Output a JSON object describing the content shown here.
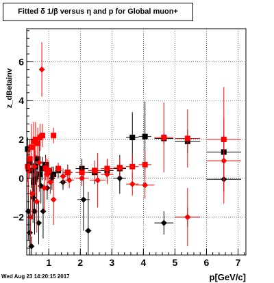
{
  "title": "Fitted δ 1/β versus η and p for Global muon+",
  "timestamp": "Wed Aug 23 14:20:15 2017",
  "chart_data": {
    "type": "scatter",
    "title": "Fitted δ 1/β versus η and p for Global muon+",
    "xlabel": "p[GeV/c]",
    "ylabel": "z_dBetainv",
    "xlim": [
      0.3,
      7.25
    ],
    "ylim": [
      -3.95,
      7.7
    ],
    "grid": true,
    "x_ticks": [
      1,
      2,
      3,
      4,
      5,
      6,
      7
    ],
    "y_ticks": [
      -2,
      0,
      2,
      4,
      6
    ],
    "series": [
      {
        "color": "#000000",
        "marker": "square",
        "points": [
          {
            "x": 0.33,
            "y": 1.5,
            "ex": 0.05,
            "ey": 0.6
          },
          {
            "x": 0.4,
            "y": 0.8,
            "ex": 0.05,
            "ey": 0.7
          },
          {
            "x": 0.45,
            "y": 0.4,
            "ex": 0.05,
            "ey": 0.9
          },
          {
            "x": 0.52,
            "y": -0.2,
            "ex": 0.05,
            "ey": 1.0
          },
          {
            "x": 0.58,
            "y": 0.6,
            "ex": 0.05,
            "ey": 0.8
          },
          {
            "x": 0.65,
            "y": 1.0,
            "ex": 0.05,
            "ey": 1.2
          },
          {
            "x": 0.72,
            "y": 0.2,
            "ex": 0.05,
            "ey": 0.7
          },
          {
            "x": 0.8,
            "y": 0.5,
            "ex": 0.05,
            "ey": 0.6
          },
          {
            "x": 0.9,
            "y": 0.7,
            "ex": 0.06,
            "ey": 0.5
          },
          {
            "x": 1.0,
            "y": 0.3,
            "ex": 0.07,
            "ey": 0.5
          },
          {
            "x": 1.15,
            "y": 0.2,
            "ex": 0.08,
            "ey": 0.4
          },
          {
            "x": 1.3,
            "y": 0.4,
            "ex": 0.1,
            "ey": 0.4
          },
          {
            "x": 1.6,
            "y": 0.3,
            "ex": 0.15,
            "ey": 0.4
          },
          {
            "x": 2.05,
            "y": 0.5,
            "ex": 0.2,
            "ey": 0.5
          },
          {
            "x": 2.45,
            "y": 0.3,
            "ex": 0.2,
            "ey": 0.6
          },
          {
            "x": 2.85,
            "y": 0.4,
            "ex": 0.2,
            "ey": 0.6
          },
          {
            "x": 3.25,
            "y": 0.5,
            "ex": 0.2,
            "ey": 0.7
          },
          {
            "x": 3.65,
            "y": 2.1,
            "ex": 0.2,
            "ey": 1.3
          },
          {
            "x": 4.05,
            "y": 2.15,
            "ex": 0.2,
            "ey": 1.8
          },
          {
            "x": 4.65,
            "y": 2.05,
            "ex": 0.3,
            "ey": 0.3
          },
          {
            "x": 5.4,
            "y": 1.9,
            "ex": 0.4,
            "ey": 0.6
          },
          {
            "x": 6.55,
            "y": 1.35,
            "ex": 0.55,
            "ey": 0.9
          }
        ]
      },
      {
        "color": "#000000",
        "marker": "diamond",
        "points": [
          {
            "x": 0.35,
            "y": -1.7,
            "ex": 0.04,
            "ey": 1.5
          },
          {
            "x": 0.4,
            "y": -2.8,
            "ex": 0.04,
            "ey": 1.2
          },
          {
            "x": 0.45,
            "y": -3.5,
            "ex": 0.04,
            "ey": 0.5
          },
          {
            "x": 0.5,
            "y": -1.0,
            "ex": 0.04,
            "ey": 1.3
          },
          {
            "x": 0.55,
            "y": -1.7,
            "ex": 0.04,
            "ey": 1.2
          },
          {
            "x": 0.6,
            "y": 0.0,
            "ex": 0.04,
            "ey": 1.2
          },
          {
            "x": 0.68,
            "y": -2.3,
            "ex": 0.05,
            "ey": 1.1
          },
          {
            "x": 0.75,
            "y": -0.4,
            "ex": 0.05,
            "ey": 0.9
          },
          {
            "x": 0.82,
            "y": -1.7,
            "ex": 0.05,
            "ey": 1.4
          },
          {
            "x": 0.95,
            "y": -0.5,
            "ex": 0.06,
            "ey": 0.6
          },
          {
            "x": 1.1,
            "y": 0.0,
            "ex": 0.08,
            "ey": 0.6
          },
          {
            "x": 1.45,
            "y": -0.2,
            "ex": 0.12,
            "ey": 0.4
          },
          {
            "x": 2.1,
            "y": -1.1,
            "ex": 0.2,
            "ey": 1.6
          },
          {
            "x": 2.25,
            "y": -2.7,
            "ex": 0.1,
            "ey": 2.0
          },
          {
            "x": 3.25,
            "y": 0.0,
            "ex": 0.2,
            "ey": 0.8
          },
          {
            "x": 4.65,
            "y": -2.3,
            "ex": 0.3,
            "ey": 0.6
          },
          {
            "x": 5.4,
            "y": -2.0,
            "ex": 0.4,
            "ey": 0.5
          },
          {
            "x": 6.55,
            "y": -0.05,
            "ex": 0.55,
            "ey": 0.6
          }
        ]
      },
      {
        "color": "#ff0000",
        "marker": "square",
        "points": [
          {
            "x": 0.33,
            "y": 0.6,
            "ex": 0.05,
            "ey": 0.8
          },
          {
            "x": 0.4,
            "y": 1.0,
            "ex": 0.05,
            "ey": 1.0
          },
          {
            "x": 0.45,
            "y": 1.6,
            "ex": 0.05,
            "ey": 1.2
          },
          {
            "x": 0.52,
            "y": 1.9,
            "ex": 0.05,
            "ey": 1.0
          },
          {
            "x": 0.58,
            "y": 2.0,
            "ex": 0.05,
            "ey": 0.9
          },
          {
            "x": 0.65,
            "y": 1.8,
            "ex": 0.05,
            "ey": 0.8
          },
          {
            "x": 0.72,
            "y": 2.1,
            "ex": 0.05,
            "ey": 0.7
          },
          {
            "x": 0.8,
            "y": 2.2,
            "ex": 0.05,
            "ey": 0.6
          },
          {
            "x": 0.9,
            "y": 0.5,
            "ex": 0.06,
            "ey": 0.6
          },
          {
            "x": 1.0,
            "y": 0.4,
            "ex": 0.07,
            "ey": 0.5
          },
          {
            "x": 1.15,
            "y": 2.2,
            "ex": 0.08,
            "ey": 0.4
          },
          {
            "x": 1.3,
            "y": 0.5,
            "ex": 0.1,
            "ey": 0.3
          },
          {
            "x": 1.6,
            "y": 0.3,
            "ex": 0.15,
            "ey": 0.3
          },
          {
            "x": 2.05,
            "y": 0.3,
            "ex": 0.2,
            "ey": 0.4
          },
          {
            "x": 2.45,
            "y": 0.4,
            "ex": 0.2,
            "ey": 0.5
          },
          {
            "x": 2.85,
            "y": 0.5,
            "ex": 0.2,
            "ey": 0.5
          },
          {
            "x": 3.25,
            "y": 0.55,
            "ex": 0.2,
            "ey": 0.5
          },
          {
            "x": 3.65,
            "y": 0.6,
            "ex": 0.2,
            "ey": 0.6
          },
          {
            "x": 4.05,
            "y": 0.7,
            "ex": 0.2,
            "ey": 0.7
          },
          {
            "x": 4.65,
            "y": 2.1,
            "ex": 0.3,
            "ey": 1.8
          },
          {
            "x": 5.4,
            "y": 2.05,
            "ex": 0.4,
            "ey": 1.5
          },
          {
            "x": 6.55,
            "y": 2.0,
            "ex": 0.55,
            "ey": 2.7
          }
        ]
      },
      {
        "color": "#ff0000",
        "marker": "diamond",
        "points": [
          {
            "x": 0.35,
            "y": 0.4,
            "ex": 0.04,
            "ey": 1.3
          },
          {
            "x": 0.42,
            "y": -2.0,
            "ex": 0.04,
            "ey": 1.4
          },
          {
            "x": 0.48,
            "y": -0.8,
            "ex": 0.04,
            "ey": 1.3
          },
          {
            "x": 0.55,
            "y": 0.6,
            "ex": 0.04,
            "ey": 1.4
          },
          {
            "x": 0.62,
            "y": -1.2,
            "ex": 0.04,
            "ey": 1.6
          },
          {
            "x": 0.7,
            "y": 0.8,
            "ex": 0.05,
            "ey": 1.5
          },
          {
            "x": 0.78,
            "y": 5.6,
            "ex": 0.05,
            "ey": 1.4
          },
          {
            "x": 0.86,
            "y": -0.5,
            "ex": 0.05,
            "ey": 1.2
          },
          {
            "x": 0.95,
            "y": 0.2,
            "ex": 0.06,
            "ey": 0.8
          },
          {
            "x": 1.05,
            "y": -0.2,
            "ex": 0.07,
            "ey": 0.6
          },
          {
            "x": 1.15,
            "y": -1.1,
            "ex": 0.08,
            "ey": 1.3
          },
          {
            "x": 1.45,
            "y": 0.1,
            "ex": 0.12,
            "ey": 0.4
          },
          {
            "x": 1.65,
            "y": -0.1,
            "ex": 0.15,
            "ey": 0.4
          },
          {
            "x": 2.05,
            "y": 0.0,
            "ex": 0.2,
            "ey": 0.4
          },
          {
            "x": 2.55,
            "y": -0.1,
            "ex": 0.25,
            "ey": 1.4
          },
          {
            "x": 2.85,
            "y": 0.2,
            "ex": 0.2,
            "ey": 0.5
          },
          {
            "x": 3.65,
            "y": -0.3,
            "ex": 0.2,
            "ey": 0.6
          },
          {
            "x": 4.05,
            "y": -0.35,
            "ex": 0.3,
            "ey": 0.7
          },
          {
            "x": 5.4,
            "y": -2.0,
            "ex": 0.4,
            "ey": 1.5
          },
          {
            "x": 6.55,
            "y": 0.9,
            "ex": 0.55,
            "ey": 2.2
          }
        ]
      }
    ]
  }
}
